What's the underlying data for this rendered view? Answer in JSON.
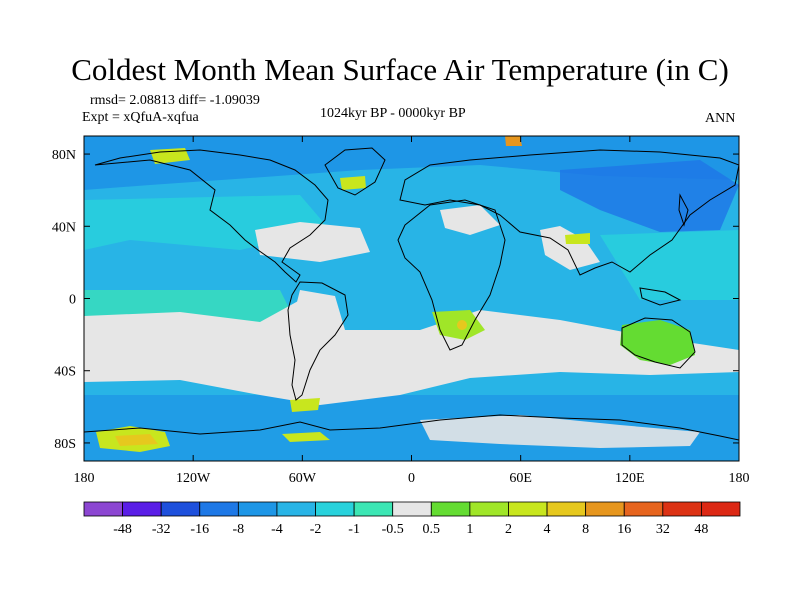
{
  "title": "Coldest Month Mean Surface Air Temperature (in C)",
  "stats": {
    "rmsd_diff": "rmsd= 2.08813 diff= -1.09039",
    "expt": "Expt = xQfuA-xqfua",
    "period": "1024kyr BP - 0000kyr BP",
    "season": "ANN"
  },
  "map": {
    "projection": "cylindrical equidistant",
    "lon_range": [
      -180,
      180
    ],
    "lat_range": [
      -90,
      90
    ],
    "lon_ticks": [
      {
        "value": -180,
        "label": "180"
      },
      {
        "value": -120,
        "label": "120W"
      },
      {
        "value": -60,
        "label": "60W"
      },
      {
        "value": 0,
        "label": "0"
      },
      {
        "value": 60,
        "label": "60E"
      },
      {
        "value": 120,
        "label": "120E"
      },
      {
        "value": 180,
        "label": "180"
      }
    ],
    "lat_ticks": [
      {
        "value": 80,
        "label": "80N"
      },
      {
        "value": 40,
        "label": "40N"
      },
      {
        "value": 0,
        "label": "0"
      },
      {
        "value": -40,
        "label": "40S"
      },
      {
        "value": -80,
        "label": "80S"
      }
    ],
    "field_summary": "Mostly cool anomalies (-0.5 to -4) over oceans and Northern Hemisphere land; neutral (-0.5 to 0.5) over South America interior, southern Atlantic, Africa and southern Indian Ocean; warm anomalies over Australia, southern Africa and parts of Antarctica."
  },
  "colorbar": {
    "labels": [
      "-48",
      "-32",
      "-16",
      "-8",
      "-4",
      "-2",
      "-1",
      "-0.5",
      "0.5",
      "1",
      "2",
      "4",
      "8",
      "16",
      "32",
      "48"
    ],
    "colors": [
      "#8c46d2",
      "#5a1ee6",
      "#1e50dc",
      "#1e78e6",
      "#1e96e6",
      "#28b4e6",
      "#28d2dc",
      "#3ce6b4",
      "#e6e6e6",
      "#64dc32",
      "#a0e628",
      "#c8e61e",
      "#e6c81e",
      "#e6961e",
      "#e6641e",
      "#dc3214",
      "#dc2814"
    ]
  }
}
